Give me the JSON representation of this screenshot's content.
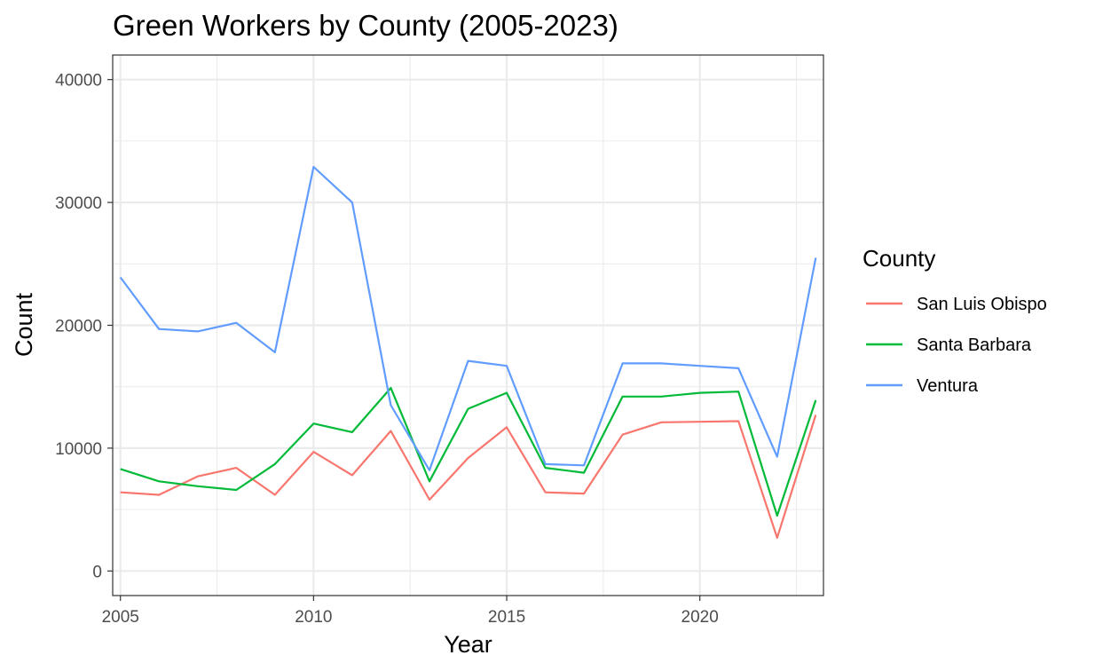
{
  "chart_data": {
    "type": "line",
    "title": "Green Workers by County (2005-2023)",
    "xlabel": "Year",
    "ylabel": "Count",
    "xlim": [
      2004.8,
      2023.2
    ],
    "ylim": [
      -2000,
      42000
    ],
    "x_ticks": [
      2005,
      2010,
      2015,
      2020
    ],
    "x_minor_ticks": [
      2007.5,
      2012.5,
      2017.5,
      2022.5
    ],
    "y_ticks": [
      0,
      10000,
      20000,
      30000,
      40000
    ],
    "y_minor_ticks": [
      5000,
      15000,
      25000,
      35000
    ],
    "grid": true,
    "legend": {
      "title": "County",
      "position": "right"
    },
    "x": [
      2005,
      2006,
      2007,
      2008,
      2009,
      2010,
      2011,
      2012,
      2013,
      2014,
      2015,
      2016,
      2017,
      2018,
      2019,
      2020,
      2021,
      2022,
      2023
    ],
    "series": [
      {
        "name": "San Luis Obispo",
        "color": "#F8766D",
        "values": [
          6400,
          6200,
          7700,
          8400,
          6200,
          9700,
          7800,
          11400,
          5800,
          9200,
          11700,
          6400,
          6300,
          11100,
          12100,
          12150,
          12200,
          2700,
          12700
        ]
      },
      {
        "name": "Santa Barbara",
        "color": "#00BA38",
        "values": [
          8300,
          7300,
          6900,
          6600,
          8700,
          12000,
          11300,
          14900,
          7300,
          13200,
          14500,
          8400,
          8000,
          14200,
          14200,
          14500,
          14600,
          4500,
          13900
        ]
      },
      {
        "name": "Ventura",
        "color": "#619CFF",
        "values": [
          23900,
          19700,
          19500,
          20200,
          17800,
          32900,
          30000,
          13500,
          8200,
          17100,
          16700,
          8700,
          8600,
          16900,
          16900,
          16700,
          16500,
          9300,
          25500
        ]
      }
    ]
  }
}
